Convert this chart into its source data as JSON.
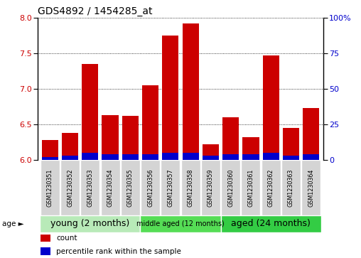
{
  "title": "GDS4892 / 1454285_at",
  "samples": [
    "GSM1230351",
    "GSM1230352",
    "GSM1230353",
    "GSM1230354",
    "GSM1230355",
    "GSM1230356",
    "GSM1230357",
    "GSM1230358",
    "GSM1230359",
    "GSM1230360",
    "GSM1230361",
    "GSM1230362",
    "GSM1230363",
    "GSM1230364"
  ],
  "count_values": [
    6.28,
    6.38,
    7.35,
    6.63,
    6.62,
    7.05,
    7.75,
    7.92,
    6.22,
    6.6,
    6.32,
    7.47,
    6.45,
    6.73
  ],
  "percentile_values": [
    2,
    3,
    5,
    4,
    4,
    4,
    5,
    5,
    3,
    4,
    4,
    5,
    3,
    4
  ],
  "ylim": [
    6.0,
    8.0
  ],
  "yticks": [
    6.0,
    6.5,
    7.0,
    7.5,
    8.0
  ],
  "right_yticks": [
    0,
    25,
    50,
    75,
    100
  ],
  "count_color": "#cc0000",
  "percentile_color": "#0000cc",
  "groups": [
    {
      "label": "young (2 months)",
      "start": 0,
      "end": 4,
      "color": "#b8ebb8"
    },
    {
      "label": "middle aged (12 months)",
      "start": 5,
      "end": 8,
      "color": "#55dd55"
    },
    {
      "label": "aged (24 months)",
      "start": 9,
      "end": 13,
      "color": "#33cc44"
    }
  ],
  "legend_red_label": "count",
  "legend_blue_label": "percentile rank within the sample",
  "age_label": "age ►"
}
